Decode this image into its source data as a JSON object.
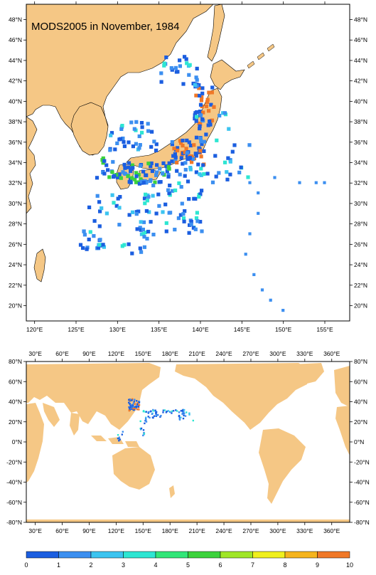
{
  "title": "MODS2005 in November, 1984",
  "regional_map": {
    "x_ticks": [
      {
        "lon": 120,
        "label": "120°E"
      },
      {
        "lon": 125,
        "label": "125°E"
      },
      {
        "lon": 130,
        "label": "130°E"
      },
      {
        "lon": 135,
        "label": "135°E"
      },
      {
        "lon": 140,
        "label": "140°E"
      },
      {
        "lon": 145,
        "label": "145°E"
      },
      {
        "lon": 150,
        "label": "150°E"
      },
      {
        "lon": 155,
        "label": "155°E"
      }
    ],
    "y_ticks": [
      {
        "lat": 20,
        "label": "20°N"
      },
      {
        "lat": 22,
        "label": "22°N"
      },
      {
        "lat": 24,
        "label": "24°N"
      },
      {
        "lat": 26,
        "label": "26°N"
      },
      {
        "lat": 28,
        "label": "28°N"
      },
      {
        "lat": 30,
        "label": "30°N"
      },
      {
        "lat": 32,
        "label": "32°N"
      },
      {
        "lat": 34,
        "label": "34°N"
      },
      {
        "lat": 36,
        "label": "36°N"
      },
      {
        "lat": 38,
        "label": "38°N"
      },
      {
        "lat": 40,
        "label": "40°N"
      },
      {
        "lat": 42,
        "label": "42°N"
      },
      {
        "lat": 44,
        "label": "44°N"
      },
      {
        "lat": 46,
        "label": "46°N"
      },
      {
        "lat": 48,
        "label": "48°N"
      }
    ],
    "lon_range": [
      119,
      158
    ],
    "lat_range": [
      18.5,
      49.5
    ]
  },
  "global_map": {
    "x_ticks": [
      {
        "lon": 30,
        "label": "30°E"
      },
      {
        "lon": 60,
        "label": "60°E"
      },
      {
        "lon": 90,
        "label": "90°E"
      },
      {
        "lon": 120,
        "label": "120°E"
      },
      {
        "lon": 150,
        "label": "150°E"
      },
      {
        "lon": 180,
        "label": "180°E"
      },
      {
        "lon": 210,
        "label": "210°E"
      },
      {
        "lon": 240,
        "label": "240°E"
      },
      {
        "lon": 270,
        "label": "270°E"
      },
      {
        "lon": 300,
        "label": "300°E"
      },
      {
        "lon": 330,
        "label": "330°E"
      },
      {
        "lon": 360,
        "label": "360°E"
      }
    ],
    "y_ticks": [
      {
        "lat": 80,
        "label": "80°N"
      },
      {
        "lat": 60,
        "label": "60°N"
      },
      {
        "lat": 40,
        "label": "40°N"
      },
      {
        "lat": 20,
        "label": "20°N"
      },
      {
        "lat": 0,
        "label": "0°N"
      },
      {
        "lat": -20,
        "label": "-20°N"
      },
      {
        "lat": -40,
        "label": "-40°N"
      },
      {
        "lat": -60,
        "label": "-60°N"
      },
      {
        "lat": -80,
        "label": "-80°N"
      }
    ],
    "lon_range": [
      20,
      380
    ],
    "lat_range": [
      -80,
      80
    ]
  },
  "colorbar": {
    "labels": [
      "0",
      "1",
      "2",
      "3",
      "4",
      "5",
      "6",
      "7",
      "8",
      "9",
      "10"
    ],
    "colors": [
      "#1b5ee0",
      "#3c8ff0",
      "#3cc4f0",
      "#2ee6d2",
      "#32e678",
      "#3cd23c",
      "#a0e628",
      "#f0f01e",
      "#f5b41e",
      "#f07828"
    ]
  },
  "colors": {
    "land": "#f5c785",
    "ocean": "#ffffff",
    "frame": "#000000"
  }
}
